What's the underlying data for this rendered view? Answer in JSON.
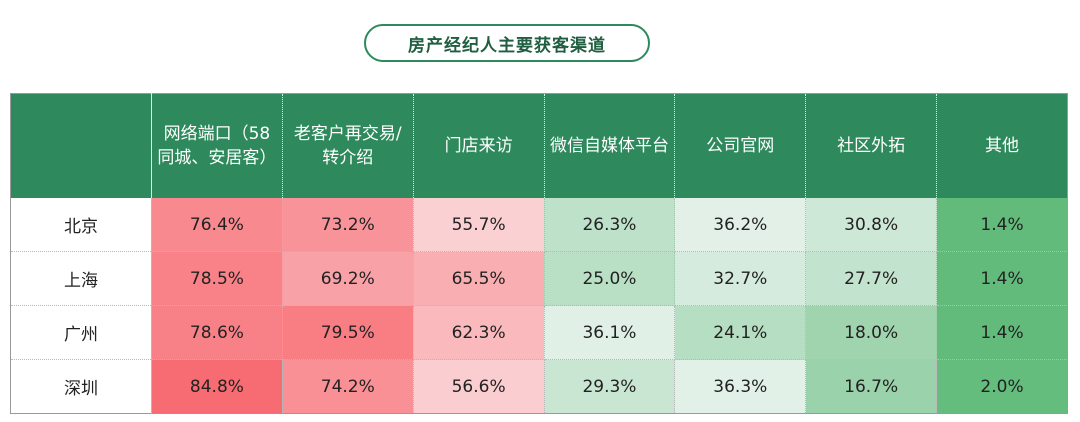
{
  "chart_data": {
    "type": "heatmap",
    "title": "房产经纪人主要获客渠道",
    "columns": [
      "网络端口（58同城、安居客）",
      "老客户再交易/转介绍",
      "门店来访",
      "微信自媒体平台",
      "公司官网",
      "社区外拓",
      "其他"
    ],
    "rows": [
      "北京",
      "上海",
      "广州",
      "深圳"
    ],
    "values": [
      [
        76.4,
        73.2,
        55.7,
        26.3,
        36.2,
        30.8,
        1.4
      ],
      [
        78.5,
        69.2,
        65.5,
        25.0,
        32.7,
        27.7,
        1.4
      ],
      [
        78.6,
        79.5,
        62.3,
        36.1,
        24.1,
        18.0,
        1.4
      ],
      [
        84.8,
        74.2,
        56.6,
        29.3,
        36.3,
        16.7,
        2.0
      ]
    ],
    "value_labels": [
      [
        "76.4%",
        "73.2%",
        "55.7%",
        "26.3%",
        "36.2%",
        "30.8%",
        "1.4%"
      ],
      [
        "78.5%",
        "69.2%",
        "65.5%",
        "25.0%",
        "32.7%",
        "27.7%",
        "1.4%"
      ],
      [
        "78.6%",
        "79.5%",
        "62.3%",
        "36.1%",
        "24.1%",
        "18.0%",
        "1.4%"
      ],
      [
        "84.8%",
        "74.2%",
        "56.6%",
        "29.3%",
        "36.3%",
        "16.7%",
        "2.0%"
      ]
    ],
    "unit": "%"
  },
  "colors": {
    "header_bg": "#2e8a5c",
    "high": "#f76c72",
    "mid": "#fbfbfd",
    "low": "#62bb7b"
  }
}
